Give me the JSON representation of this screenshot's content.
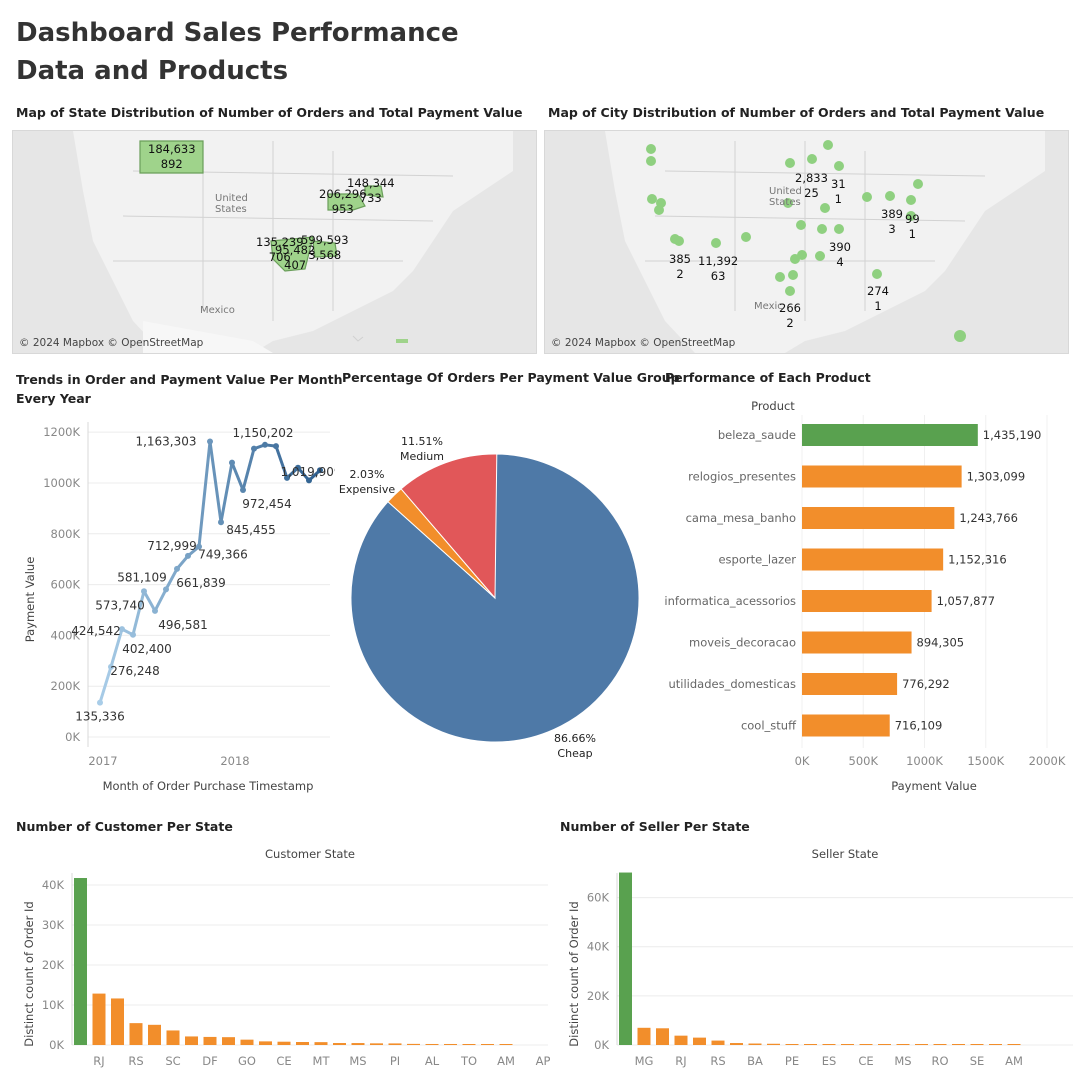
{
  "header": {
    "title_line1": "Dashboard Sales Performance",
    "title_line2": "Data and Products"
  },
  "state_map": {
    "title": "Map of State Distribution of Number of Orders and Total Payment Value",
    "credit": "© 2024 Mapbox © OpenStreetMap",
    "countries": {
      "us_line1": "United",
      "us_line2": "States",
      "mexico": "Mexico"
    },
    "labels": [
      {
        "value": "184,633",
        "count": "892"
      },
      {
        "value": "206,296",
        "count": "953"
      },
      {
        "value": "148,344",
        "count": "733"
      },
      {
        "value": "135,239",
        "count": "706"
      },
      {
        "value": "95,482",
        "count": "407"
      },
      {
        "value": "599,593",
        "count": "3,568"
      }
    ],
    "colors": {
      "region": "#9fd38b",
      "outline": "#6a9e5a"
    }
  },
  "city_map": {
    "title": "Map of City Distribution of Number of Orders and Total Payment Value",
    "credit": "© 2024 Mapbox © OpenStreetMap",
    "countries": {
      "us_line1": "United",
      "us_line2": "States",
      "mexico": "Mexic"
    },
    "labels": [
      {
        "value": "2,833",
        "count": "25"
      },
      {
        "value": "31",
        "count": "1"
      },
      {
        "value": "389",
        "count": "3"
      },
      {
        "value": "99",
        "count": "1"
      },
      {
        "value": "390",
        "count": "4"
      },
      {
        "value": "385",
        "count": "2"
      },
      {
        "value": "11,392",
        "count": "63"
      },
      {
        "value": "266",
        "count": "2"
      },
      {
        "value": "274",
        "count": "1"
      }
    ],
    "colors": {
      "dot": "#8fd080"
    }
  },
  "charts": {
    "trend": {
      "title_line1": "Trends in Order and Payment Value Per Month",
      "title_line2": "Every Year"
    },
    "pie": {
      "title": "Percentage Of Orders Per Payment Value Group"
    },
    "products": {
      "title": "Performance of Each Product"
    },
    "customers": {
      "title": "Number of Customer Per State"
    },
    "sellers": {
      "title": "Number of Seller Per State"
    }
  },
  "chart_data": [
    {
      "type": "line",
      "xlabel": "Month of Order Purchase Timestamp",
      "ylabel": "Payment Value",
      "x_ticks": [
        "2017",
        "2018"
      ],
      "y_ticks": [
        "0K",
        "200K",
        "400K",
        "600K",
        "800K",
        "1000K",
        "1200K"
      ],
      "ylim": [
        0,
        1240000
      ],
      "x": [
        "2016-12",
        "2017-01",
        "2017-02",
        "2017-03",
        "2017-04",
        "2017-05",
        "2017-06",
        "2017-07",
        "2017-08",
        "2017-09",
        "2017-10",
        "2017-11",
        "2017-12",
        "2018-01",
        "2018-02",
        "2018-03",
        "2018-04",
        "2018-05",
        "2018-06",
        "2018-07",
        "2018-08"
      ],
      "y": [
        135336,
        276248,
        424542,
        402400,
        573740,
        496581,
        581109,
        661839,
        712999,
        749366,
        1163303,
        845455,
        1080000,
        972454,
        1135000,
        1150202,
        1145000,
        1019909,
        1060000,
        1010000,
        1050000
      ],
      "data_labels": [
        "135,336",
        "276,248",
        "424,542",
        "402,400",
        "573,740",
        "496,581",
        "581,109",
        "661,839",
        "712,999",
        "749,366",
        "1,163,303",
        "845,455",
        "",
        "972,454",
        "",
        "1,150,202",
        "",
        "1,019,909",
        "",
        "",
        ""
      ],
      "colors": {
        "start": "#a9cde8",
        "end": "#2e5f8f"
      }
    },
    {
      "type": "pie",
      "slices": [
        {
          "name": "Cheap",
          "pct": 86.66,
          "label": "86.66%",
          "color": "#4e79a7"
        },
        {
          "name": "Expensive",
          "pct": 2.03,
          "label": "2.03%",
          "color": "#f28e2b"
        },
        {
          "name": "Medium",
          "pct": 11.51,
          "label": "11.51%",
          "color": "#e15759"
        }
      ]
    },
    {
      "type": "bar",
      "orientation": "horizontal",
      "header": "Product",
      "xlabel": "Payment Value",
      "x_ticks": [
        "0K",
        "500K",
        "1000K",
        "1500K",
        "2000K"
      ],
      "xlim": [
        0,
        2000000
      ],
      "categories": [
        "beleza_saude",
        "relogios_presentes",
        "cama_mesa_banho",
        "esporte_lazer",
        "informatica_acessorios",
        "moveis_decoracao",
        "utilidades_domesticas",
        "cool_stuff"
      ],
      "values": [
        1435190,
        1303099,
        1243766,
        1152316,
        1057877,
        894305,
        776292,
        716109
      ],
      "value_labels": [
        "1,435,190",
        "1,303,099",
        "1,243,766",
        "1,152,316",
        "1,057,877",
        "894,305",
        "776,292",
        "716,109"
      ],
      "colors": {
        "top": "#59a14f",
        "rest": "#f28e2b"
      }
    },
    {
      "type": "bar",
      "header": "Customer State",
      "ylabel": "Distinct count of Order Id",
      "y_ticks": [
        "0K",
        "10K",
        "20K",
        "30K",
        "40K"
      ],
      "ylim": [
        0,
        43000
      ],
      "x_tick_labels": [
        "RJ",
        "RS",
        "SC",
        "DF",
        "GO",
        "CE",
        "MT",
        "MS",
        "PI",
        "AL",
        "TO",
        "AM",
        "AP"
      ],
      "values": [
        41746,
        12852,
        11635,
        5466,
        5045,
        3637,
        2140,
        2020,
        1957,
        1336,
        907,
        823,
        749,
        715,
        495,
        485,
        413,
        397,
        280,
        253,
        253,
        148,
        81,
        68
      ],
      "colors": {
        "top": "#59a14f",
        "rest": "#f28e2b"
      }
    },
    {
      "type": "bar",
      "header": "Seller State",
      "ylabel": "Distinct count of Order Id",
      "y_ticks": [
        "0K",
        "20K",
        "40K",
        "60K"
      ],
      "ylim": [
        0,
        70000
      ],
      "x_tick_labels": [
        "MG",
        "RJ",
        "RS",
        "BA",
        "PE",
        "ES",
        "CE",
        "MS",
        "RO",
        "SE",
        "AM"
      ],
      "values": [
        70188,
        7000,
        6800,
        3800,
        3000,
        1800,
        800,
        600,
        500,
        400,
        300,
        150,
        120,
        90,
        80,
        60,
        40,
        35,
        30,
        20,
        15,
        10
      ],
      "colors": {
        "top": "#59a14f",
        "rest": "#f28e2b"
      }
    }
  ]
}
